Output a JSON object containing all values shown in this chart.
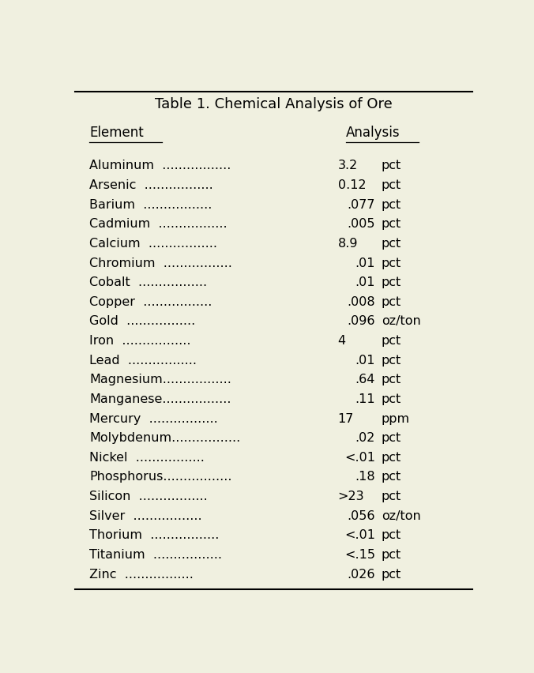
{
  "title": "Table 1. Chemical Analysis of Ore",
  "col_headers": [
    "Element",
    "Analysis"
  ],
  "rows": [
    {
      "element": "Aluminum",
      "space": true,
      "value": "3.2",
      "unit": "pct",
      "val_align": "left"
    },
    {
      "element": "Arsenic",
      "space": true,
      "value": "0.12",
      "unit": "pct",
      "val_align": "left"
    },
    {
      "element": "Barium",
      "space": true,
      "value": ".077",
      "unit": "pct",
      "val_align": "right"
    },
    {
      "element": "Cadmium",
      "space": true,
      "value": ".005",
      "unit": "pct",
      "val_align": "right"
    },
    {
      "element": "Calcium",
      "space": true,
      "value": "8.9",
      "unit": "pct",
      "val_align": "left"
    },
    {
      "element": "Chromium",
      "space": true,
      "value": ".01",
      "unit": "pct",
      "val_align": "right"
    },
    {
      "element": "Cobalt",
      "space": true,
      "value": ".01",
      "unit": "pct",
      "val_align": "right"
    },
    {
      "element": "Copper",
      "space": true,
      "value": ".008",
      "unit": "pct",
      "val_align": "right"
    },
    {
      "element": "Gold",
      "space": true,
      "value": ".096",
      "unit": "oz/ton",
      "val_align": "right"
    },
    {
      "element": "Iron",
      "space": true,
      "value": "4",
      "unit": "pct",
      "val_align": "left"
    },
    {
      "element": "Lead",
      "space": true,
      "value": ".01",
      "unit": "pct",
      "val_align": "right"
    },
    {
      "element": "Magnesium",
      "space": false,
      "value": ".64",
      "unit": "pct",
      "val_align": "right"
    },
    {
      "element": "Manganese",
      "space": false,
      "value": ".11",
      "unit": "pct",
      "val_align": "right"
    },
    {
      "element": "Mercury",
      "space": true,
      "value": "17",
      "unit": "ppm",
      "val_align": "left"
    },
    {
      "element": "Molybdenum",
      "space": false,
      "value": ".02",
      "unit": "pct",
      "val_align": "right"
    },
    {
      "element": "Nickel",
      "space": true,
      "value": "<.01",
      "unit": "pct",
      "val_align": "right"
    },
    {
      "element": "Phosphorus",
      "space": false,
      "value": ".18",
      "unit": "pct",
      "val_align": "right"
    },
    {
      "element": "Silicon",
      "space": true,
      "value": ">23",
      "unit": "pct",
      "val_align": "left"
    },
    {
      "element": "Silver",
      "space": true,
      "value": ".056",
      "unit": "oz/ton",
      "val_align": "right"
    },
    {
      "element": "Thorium",
      "space": true,
      "value": "<.01",
      "unit": "pct",
      "val_align": "right"
    },
    {
      "element": "Titanium",
      "space": true,
      "value": "<.15",
      "unit": "pct",
      "val_align": "right"
    },
    {
      "element": "Zinc",
      "space": true,
      "value": ".026",
      "unit": "pct",
      "val_align": "right"
    }
  ],
  "bg_color": "#f0f0e0",
  "text_color": "#000000",
  "font_size": 11.5,
  "title_font_size": 13.0,
  "header_font_size": 12.0,
  "font_family": "Courier New",
  "border_color": "#000000",
  "dots": "................."
}
